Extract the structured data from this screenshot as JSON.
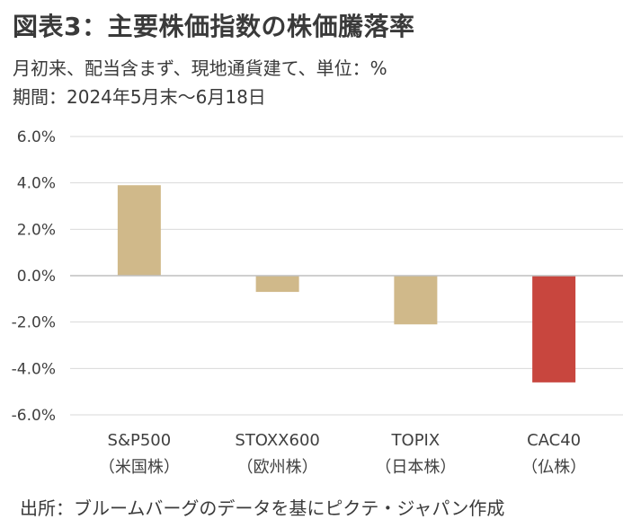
{
  "header": {
    "title": "図表3：主要株価指数の株価騰落率",
    "subtitle": "月初来、配当含まず、現地通貨建て、単位：%",
    "period": "期間：2024年5月末～6月18日"
  },
  "footer": {
    "source": "出所：ブルームバーグのデータを基にピクテ・ジャパン作成"
  },
  "colors": {
    "default_bar": "#d0b98a",
    "highlight_bar": "#c8463e",
    "grid": "#d9d9d9",
    "zero_line": "#bfbfbf"
  },
  "chart_data": {
    "type": "bar",
    "categories": [
      "S&P500",
      "STOXX600",
      "TOPIX",
      "CAC40"
    ],
    "category_notes": [
      "（米国株）",
      "（欧州株）",
      "（日本株）",
      "（仏株）"
    ],
    "values": [
      3.9,
      -0.7,
      -2.1,
      -4.6
    ],
    "highlight_index": 3,
    "ylim": [
      -6.0,
      6.0
    ],
    "yticks": [
      6.0,
      4.0,
      2.0,
      0.0,
      -2.0,
      -4.0,
      -6.0
    ],
    "ytick_labels": [
      "6.0%",
      "4.0%",
      "2.0%",
      "0.0%",
      "-2.0%",
      "-4.0%",
      "-6.0%"
    ],
    "grid": true,
    "xlabel": "",
    "ylabel": ""
  }
}
